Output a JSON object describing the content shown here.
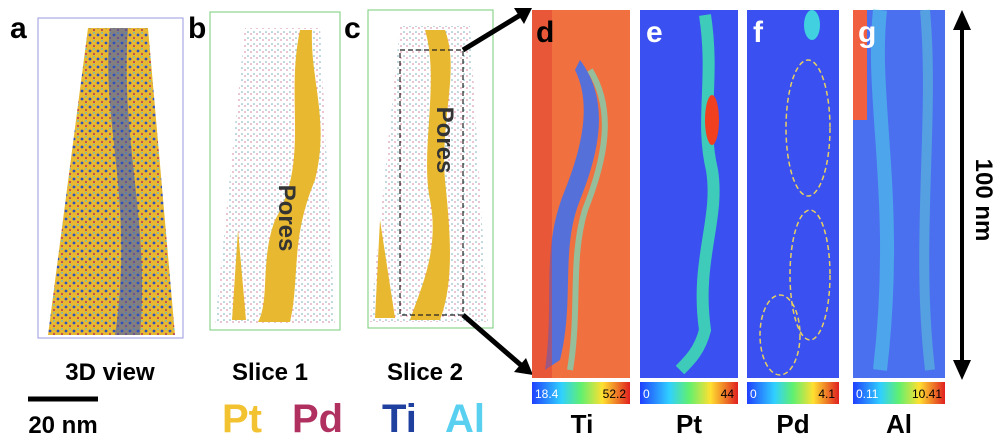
{
  "panels": [
    {
      "label": "a",
      "caption": "3D view"
    },
    {
      "label": "b",
      "caption": "Slice 1",
      "annotation": "Pores"
    },
    {
      "label": "c",
      "caption": "Slice 2",
      "annotation": "Pores"
    }
  ],
  "maps": [
    {
      "label": "d",
      "element": "Ti",
      "min": "18.4",
      "max": "52.2"
    },
    {
      "label": "e",
      "element": "Pt",
      "min": "0",
      "max": "44"
    },
    {
      "label": "f",
      "element": "Pd",
      "min": "0",
      "max": "4.1"
    },
    {
      "label": "g",
      "element": "Al",
      "min": "0.11",
      "max": "10.41"
    }
  ],
  "scale_bar": "20 nm",
  "length_bar": "100 nm",
  "legend": [
    "Pt",
    "Pd",
    "Ti",
    "Al"
  ]
}
